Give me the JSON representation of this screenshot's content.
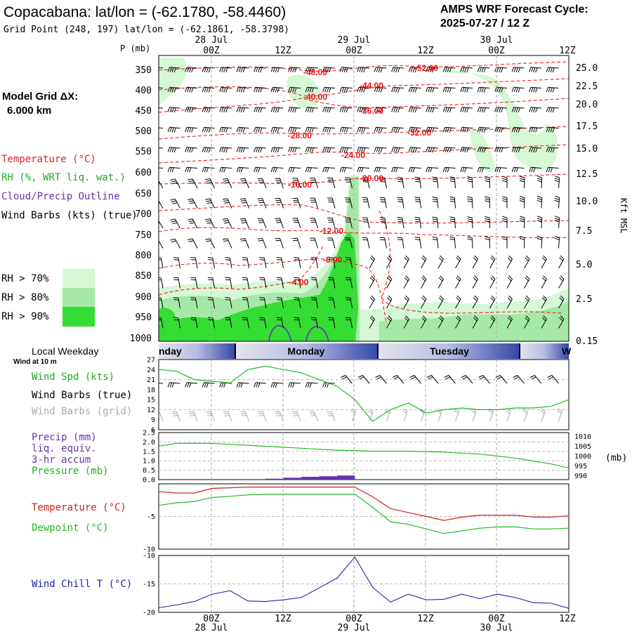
{
  "header": {
    "title": "Copacabana:  lat/lon = (-62.1780, -58.4460)",
    "subtitle": "Grid Point (248, 197) lat/lon = (-62.1861, -58.3798)",
    "cycle_title": "AMPS WRF Forecast Cycle:",
    "cycle_value": "2025-07-27 / 12  Z"
  },
  "left_panel": {
    "model_grid_label": "Model Grid ΔX:",
    "model_grid_value": "6.000 km",
    "legend": [
      {
        "label": "Temperature (°C)",
        "color": "#dd2222"
      },
      {
        "label": "RH (%, WRT liq. wat.)",
        "color": "#22aa22"
      },
      {
        "label": "Cloud/Precip Outline",
        "color": "#6633aa"
      },
      {
        "label": "Wind Barbs (kts) (true)",
        "color": "#000000"
      }
    ],
    "rh_levels": [
      {
        "label": "RH > 70%",
        "color": "#d4f7d4"
      },
      {
        "label": "RH > 80%",
        "color": "#a6e8a6"
      },
      {
        "label": "RH > 90%",
        "color": "#33dd33"
      }
    ]
  },
  "time_axis": {
    "top_dates": [
      "28 Jul",
      "29 Jul",
      "30 Jul"
    ],
    "hour_labels": [
      "00Z",
      "12Z",
      "00Z",
      "12Z",
      "00Z",
      "12Z"
    ],
    "bottom_dates": [
      "28 Jul",
      "29 Jul",
      "30 Jul"
    ]
  },
  "weekday_bar": {
    "label": "Local Weekday",
    "days": [
      "nday",
      "Monday",
      "Tuesday",
      "W"
    ]
  },
  "chart_data": [
    {
      "type": "heatmap",
      "name": "cross-section",
      "ylabel": "P (mb)",
      "y2label": "Kft MSL",
      "y_ticks": [
        "350",
        "400",
        "450",
        "500",
        "550",
        "600",
        "650",
        "700",
        "750",
        "800",
        "850",
        "900",
        "950",
        "1000"
      ],
      "y2_ticks": [
        "25.0",
        "22.5",
        "20.0",
        "17.5",
        "15.0",
        "12.5",
        "10.0",
        "7.5",
        "5.0",
        "2.5",
        "0.15"
      ],
      "temperature_labels": [
        "-48.00",
        "-52.00",
        "-40.00",
        "-44.00",
        "-36.00",
        "-28.00",
        "-32.00",
        "-24.00",
        "-20.00",
        "-16.00",
        "-12.00",
        "-8.00",
        "-4.00"
      ],
      "temperature_color": "#dd2222"
    },
    {
      "type": "line",
      "name": "wind",
      "title_lines": [
        "Wind at 10 m"
      ],
      "legend": [
        "Wind Spd (kts)",
        "Wind Barbs (true)",
        "Wind Barbs (grid)"
      ],
      "legend_colors": [
        "#22aa22",
        "#000000",
        "#aaaaaa"
      ],
      "y_ticks": [
        "27",
        "24",
        "21",
        "18",
        "15",
        "12",
        "9",
        "6"
      ],
      "ylim": [
        6,
        27
      ],
      "values": [
        24,
        23.5,
        21,
        20.5,
        20,
        24,
        25,
        24,
        23,
        21,
        19,
        15,
        8.5,
        12,
        14,
        11,
        12,
        12.5,
        12,
        12,
        12.5,
        12.5,
        13,
        15
      ]
    },
    {
      "type": "bar",
      "name": "precip-pressure",
      "legend": [
        "Precip (mm)",
        "liq. equiv.",
        "3-hr accum",
        "Pressure (mb)"
      ],
      "legend_colors": [
        "#6633aa",
        "#6633aa",
        "#6633aa",
        "#22aa22"
      ],
      "y_ticks": [
        "2.5",
        "2.0",
        "1.5",
        "1.0",
        "0.5",
        "0.0"
      ],
      "y2_ticks": [
        "1010",
        "1005",
        "1000",
        "995",
        "990"
      ],
      "y2label": "(mb)",
      "ylim": [
        0,
        2.5
      ],
      "y2lim": [
        988,
        1012
      ],
      "precip": [
        0,
        0,
        0,
        0,
        0,
        0,
        0,
        0.05,
        0.1,
        0.15,
        0.18,
        0.22,
        0,
        0,
        0,
        0,
        0,
        0,
        0,
        0,
        0,
        0,
        0,
        0
      ],
      "pressure": [
        1005,
        1006.5,
        1006.5,
        1006.5,
        1006,
        1005.5,
        1005,
        1004.5,
        1004,
        1003.5,
        1003,
        1002.8,
        1002.5,
        1002.5,
        1002.5,
        1002.3,
        1002,
        1001.5,
        1001,
        1000,
        999,
        997.5,
        996,
        994
      ]
    },
    {
      "type": "line",
      "name": "temperature-dewpoint",
      "legend": [
        "Temperature (°C)",
        "Dewpoint (°C)"
      ],
      "legend_colors": [
        "#cc2222",
        "#22bb22"
      ],
      "y_ticks": [
        "-5",
        "-10"
      ],
      "ylim": [
        -10,
        0
      ],
      "temperature": [
        -1.2,
        -1.4,
        -1.4,
        -0.7,
        -0.6,
        -0.5,
        -0.5,
        -0.5,
        -0.5,
        -0.5,
        -0.5,
        -0.5,
        -2.0,
        -3.8,
        -4.4,
        -5.0,
        -5.6,
        -5.1,
        -4.8,
        -4.8,
        -4.8,
        -5.1,
        -5.1,
        -4.9
      ],
      "dewpoint": [
        -3.3,
        -2.9,
        -2.7,
        -2.1,
        -1.9,
        -1.7,
        -1.6,
        -1.6,
        -1.6,
        -1.6,
        -1.6,
        -1.6,
        -3.6,
        -5.8,
        -6.2,
        -6.9,
        -7.6,
        -7.2,
        -6.8,
        -6.6,
        -6.6,
        -6.9,
        -6.9,
        -6.8
      ]
    },
    {
      "type": "line",
      "name": "wind-chill",
      "legend": [
        "Wind Chill T (°C)"
      ],
      "legend_colors": [
        "#2222aa"
      ],
      "y_ticks": [
        "-10",
        "-15",
        "-20"
      ],
      "ylim": [
        -20,
        -10
      ],
      "values": [
        -19.2,
        -18.7,
        -18.1,
        -16.8,
        -16.2,
        -18.0,
        -18.1,
        -17.8,
        -17.4,
        -15.7,
        -14.0,
        -10.3,
        -15.6,
        -18.2,
        -16.8,
        -17.8,
        -17.7,
        -16.8,
        -17.6,
        -16.8,
        -17.4,
        -18.3,
        -18.4,
        -19.3
      ]
    }
  ]
}
